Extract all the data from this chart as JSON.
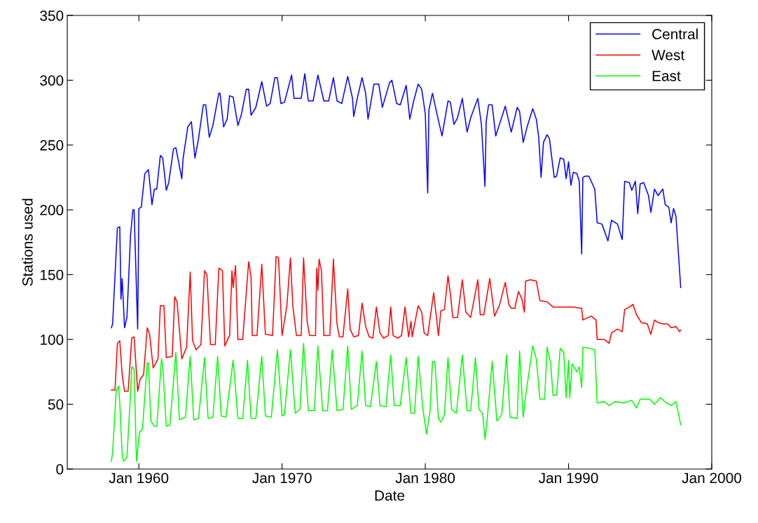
{
  "chart_data": {
    "type": "line",
    "xlabel": "Date",
    "ylabel": "Stations used",
    "xlim": [
      "1955-01",
      "2000-01"
    ],
    "ylim": [
      0,
      350
    ],
    "xticks": [
      {
        "value": "1960-01",
        "label": "Jan 1960"
      },
      {
        "value": "1970-01",
        "label": "Jan 1970"
      },
      {
        "value": "1980-01",
        "label": "Jan 1980"
      },
      {
        "value": "1990-01",
        "label": "Jan 1990"
      },
      {
        "value": "2000-01",
        "label": "Jan 2000"
      }
    ],
    "yticks": [
      0,
      50,
      100,
      150,
      200,
      250,
      300,
      350
    ],
    "legend": "top right",
    "series": [
      {
        "name": "Central",
        "color": "#0000ff",
        "x": [
          "1958-02",
          "1958-03",
          "1958-07",
          "1958-09",
          "1958-10",
          "1958-11",
          "1959-01",
          "1959-03",
          "1959-06",
          "1959-08",
          "1959-09",
          "1959-12",
          "1960-01",
          "1960-03",
          "1960-06",
          "1960-09",
          "1960-12",
          "1961-02",
          "1961-04",
          "1961-07",
          "1961-09",
          "1961-12",
          "1962-02",
          "1962-06",
          "1962-08",
          "1963-01",
          "1963-02",
          "1963-06",
          "1963-09",
          "1963-12",
          "1964-03",
          "1964-07",
          "1964-09",
          "1964-12",
          "1965-03",
          "1965-08",
          "1965-09",
          "1965-12",
          "1966-03",
          "1966-05",
          "1966-08",
          "1966-12",
          "1967-03",
          "1967-07",
          "1967-09",
          "1967-11",
          "1968-03",
          "1968-08",
          "1968-12",
          "1969-03",
          "1969-07",
          "1969-09",
          "1969-12",
          "1970-03",
          "1970-09",
          "1970-11",
          "1971-05",
          "1971-08",
          "1971-11",
          "1972-03",
          "1972-07",
          "1972-12",
          "1973-04",
          "1973-08",
          "1973-11",
          "1974-03",
          "1974-08",
          "1974-12",
          "1975-01",
          "1975-04",
          "1975-08",
          "1975-11",
          "1976-01",
          "1976-06",
          "1976-10",
          "1977-01",
          "1977-07",
          "1977-09",
          "1978-01",
          "1978-04",
          "1978-09",
          "1978-12",
          "1979-03",
          "1979-07",
          "1979-10",
          "1980-01",
          "1980-03",
          "1980-04",
          "1980-07",
          "1980-11",
          "1981-03",
          "1981-08",
          "1981-10",
          "1982-01",
          "1982-04",
          "1982-08",
          "1982-12",
          "1983-03",
          "1983-09",
          "1983-12",
          "1984-03",
          "1984-04",
          "1984-06",
          "1984-09",
          "1984-12",
          "1985-08",
          "1986-01",
          "1986-06",
          "1986-08",
          "1986-11",
          "1987-02",
          "1987-07",
          "1987-10",
          "1987-12",
          "1988-02",
          "1988-04",
          "1988-07",
          "1988-09",
          "1989-01",
          "1989-03",
          "1989-06",
          "1989-09",
          "1989-11",
          "1990-01",
          "1990-03",
          "1990-05",
          "1990-08",
          "1990-10",
          "1990-12",
          "1991-01",
          "1991-03",
          "1991-06",
          "1991-11",
          "1992-01",
          "1992-05",
          "1992-10",
          "1993-01",
          "1993-06",
          "1993-10",
          "1993-12",
          "1994-04",
          "1994-06",
          "1994-09",
          "1994-11",
          "1995-01",
          "1995-04",
          "1995-08",
          "1995-10",
          "1996-01",
          "1996-04",
          "1996-08",
          "1996-10",
          "1997-01",
          "1997-03",
          "1997-05",
          "1997-07",
          "1997-11"
        ],
        "values": [
          109,
          112,
          186,
          187,
          131,
          147,
          109,
          117,
          180,
          200,
          200,
          108,
          201,
          202,
          228,
          231,
          204,
          216,
          216,
          242,
          240,
          215,
          221,
          247,
          248,
          224,
          239,
          264,
          268,
          240,
          255,
          281,
          281,
          256,
          265,
          290,
          290,
          264,
          270,
          288,
          287,
          265,
          274,
          293,
          293,
          273,
          279,
          299,
          280,
          282,
          302,
          302,
          282,
          283,
          304,
          286,
          286,
          305,
          284,
          284,
          304,
          284,
          284,
          302,
          284,
          282,
          303,
          286,
          272,
          286,
          302,
          290,
          270,
          297,
          297,
          279,
          298,
          300,
          282,
          281,
          296,
          270,
          283,
          297,
          293,
          274,
          213,
          277,
          290,
          273,
          257,
          284,
          283,
          266,
          271,
          286,
          260,
          271,
          286,
          266,
          218,
          268,
          281,
          281,
          257,
          280,
          260,
          279,
          276,
          252,
          263,
          278,
          270,
          256,
          225,
          252,
          258,
          255,
          225,
          226,
          240,
          239,
          224,
          237,
          219,
          229,
          228,
          222,
          166,
          225,
          226,
          226,
          216,
          190,
          189,
          176,
          192,
          189,
          177,
          222,
          221,
          215,
          222,
          197,
          220,
          221,
          211,
          198,
          216,
          211,
          216,
          204,
          202,
          190,
          201,
          195,
          140
        ]
      },
      {
        "name": "West",
        "color": "#ff0000",
        "x": [
          "1958-02",
          "1958-05",
          "1958-07",
          "1958-09",
          "1958-11",
          "1959-01",
          "1959-04",
          "1959-07",
          "1959-09",
          "1959-12",
          "1960-02",
          "1960-05",
          "1960-08",
          "1960-10",
          "1961-01",
          "1961-05",
          "1961-07",
          "1961-10",
          "1961-12",
          "1962-05",
          "1962-07",
          "1962-09",
          "1963-01",
          "1963-05",
          "1963-08",
          "1963-10",
          "1964-01",
          "1964-05",
          "1964-08",
          "1964-10",
          "1965-01",
          "1965-05",
          "1965-08",
          "1965-11",
          "1966-01",
          "1966-05",
          "1966-07",
          "1966-08",
          "1966-10",
          "1966-12",
          "1967-04",
          "1967-09",
          "1967-11",
          "1967-12",
          "1968-04",
          "1968-08",
          "1968-11",
          "1969-05",
          "1969-08",
          "1969-10",
          "1970-01",
          "1970-05",
          "1970-08",
          "1970-10",
          "1971-01",
          "1971-05",
          "1971-07",
          "1971-10",
          "1971-12",
          "1972-05",
          "1972-06",
          "1972-07",
          "1972-08",
          "1972-10",
          "1972-12",
          "1973-05",
          "1973-08",
          "1973-11",
          "1974-01",
          "1974-04",
          "1974-08",
          "1974-10",
          "1975-01",
          "1975-05",
          "1975-08",
          "1975-11",
          "1976-02",
          "1976-05",
          "1976-08",
          "1976-11",
          "1977-02",
          "1977-06",
          "1977-08",
          "1977-10",
          "1978-02",
          "1978-05",
          "1978-08",
          "1978-11",
          "1979-01",
          "1979-02",
          "1979-07",
          "1979-10",
          "1979-12",
          "1980-03",
          "1980-08",
          "1980-12",
          "1981-02",
          "1981-05",
          "1981-08",
          "1981-10",
          "1981-12",
          "1982-04",
          "1982-08",
          "1982-11",
          "1983-03",
          "1983-09",
          "1983-11",
          "1984-02",
          "1984-07",
          "1984-11",
          "1985-03",
          "1985-08",
          "1985-11",
          "1986-01",
          "1986-04",
          "1986-07",
          "1986-10",
          "1986-12",
          "1987-01",
          "1987-05",
          "1987-10",
          "1988-01",
          "1988-07",
          "1988-12",
          "1989-08",
          "1990-05",
          "1990-12",
          "1991-01",
          "1991-08",
          "1991-12",
          "1992-01",
          "1992-07",
          "1992-11",
          "1993-01",
          "1993-06",
          "1993-10",
          "1993-12",
          "1994-04",
          "1994-07",
          "1994-10",
          "1995-02",
          "1995-07",
          "1995-10",
          "1996-01",
          "1996-04",
          "1996-08",
          "1996-12",
          "1997-03",
          "1997-07",
          "1997-10",
          "1997-11"
        ],
        "values": [
          61,
          61,
          97,
          99,
          73,
          60,
          60,
          101,
          102,
          60,
          69,
          73,
          109,
          104,
          78,
          85,
          126,
          126,
          86,
          87,
          133,
          129,
          85,
          94,
          152,
          99,
          92,
          96,
          153,
          150,
          96,
          96,
          155,
          153,
          95,
          103,
          153,
          140,
          157,
          100,
          100,
          160,
          148,
          103,
          103,
          158,
          104,
          103,
          164,
          163,
          103,
          126,
          163,
          126,
          103,
          103,
          163,
          114,
          103,
          103,
          155,
          138,
          162,
          153,
          103,
          103,
          162,
          112,
          102,
          102,
          139,
          108,
          102,
          103,
          128,
          110,
          102,
          101,
          125,
          105,
          101,
          103,
          125,
          103,
          101,
          103,
          125,
          102,
          114,
          102,
          126,
          121,
          105,
          103,
          136,
          103,
          122,
          123,
          149,
          135,
          117,
          117,
          146,
          121,
          117,
          146,
          119,
          119,
          147,
          118,
          126,
          144,
          127,
          124,
          124,
          137,
          131,
          121,
          145,
          146,
          145,
          130,
          129,
          125,
          125,
          125,
          124,
          115,
          118,
          115,
          100,
          100,
          97,
          105,
          108,
          106,
          123,
          125,
          127,
          119,
          113,
          112,
          104,
          115,
          113,
          112,
          112,
          109,
          110,
          106,
          107
        ]
      },
      {
        "name": "East",
        "color": "#00ff00",
        "x": [
          "1958-02",
          "1958-03",
          "1958-06",
          "1958-08",
          "1958-09",
          "1958-11",
          "1958-12",
          "1959-03",
          "1959-06",
          "1959-07",
          "1959-09",
          "1959-11",
          "1960-01",
          "1960-02",
          "1960-04",
          "1960-08",
          "1960-09",
          "1960-11",
          "1961-02",
          "1961-04",
          "1961-08",
          "1961-09",
          "1961-12",
          "1962-03",
          "1962-08",
          "1962-11",
          "1963-04",
          "1963-08",
          "1963-11",
          "1964-03",
          "1964-08",
          "1964-11",
          "1965-03",
          "1965-07",
          "1965-10",
          "1966-02",
          "1966-08",
          "1966-12",
          "1967-04",
          "1967-08",
          "1967-11",
          "1968-03",
          "1968-08",
          "1968-11",
          "1969-04",
          "1969-09",
          "1970-01",
          "1970-03",
          "1970-08",
          "1970-12",
          "1971-04",
          "1971-07",
          "1971-11",
          "1972-04",
          "1972-07",
          "1972-11",
          "1973-03",
          "1973-07",
          "1973-11",
          "1974-04",
          "1974-08",
          "1974-11",
          "1975-04",
          "1975-08",
          "1975-11",
          "1976-03",
          "1976-08",
          "1976-11",
          "1977-04",
          "1977-08",
          "1977-11",
          "1978-04",
          "1978-09",
          "1979-01",
          "1979-04",
          "1979-07",
          "1979-11",
          "1980-02",
          "1980-05",
          "1980-07",
          "1980-09",
          "1980-12",
          "1981-02",
          "1981-05",
          "1981-08",
          "1981-11",
          "1982-03",
          "1982-08",
          "1982-12",
          "1983-03",
          "1983-07",
          "1983-10",
          "1984-01",
          "1984-03",
          "1984-05",
          "1984-09",
          "1985-01",
          "1985-05",
          "1985-09",
          "1985-12",
          "1986-06",
          "1986-08",
          "1986-11",
          "1987-01",
          "1987-07",
          "1987-10",
          "1988-01",
          "1988-05",
          "1988-07",
          "1988-10",
          "1988-12",
          "1989-03",
          "1989-06",
          "1989-09",
          "1989-11",
          "1990-01",
          "1990-02",
          "1990-04",
          "1990-08",
          "1990-10",
          "1990-12",
          "1991-01",
          "1991-07",
          "1991-11",
          "1992-01",
          "1992-07",
          "1992-11",
          "1993-04",
          "1993-11",
          "1994-06",
          "1994-10",
          "1995-01",
          "1995-09",
          "1996-01",
          "1996-06",
          "1996-11",
          "1997-03",
          "1997-07",
          "1997-11"
        ],
        "values": [
          6,
          13,
          60,
          64,
          51,
          12,
          6,
          9,
          58,
          79,
          77,
          6,
          24,
          29,
          31,
          82,
          82,
          37,
          33,
          33,
          85,
          79,
          33,
          34,
          90,
          38,
          40,
          87,
          38,
          39,
          86,
          39,
          40,
          87,
          41,
          40,
          84,
          39,
          39,
          84,
          39,
          39,
          87,
          41,
          40,
          92,
          41,
          42,
          92,
          43,
          46,
          97,
          45,
          45,
          95,
          45,
          45,
          92,
          45,
          46,
          95,
          46,
          49,
          91,
          49,
          48,
          83,
          49,
          48,
          88,
          49,
          49,
          86,
          43,
          43,
          87,
          46,
          27,
          45,
          83,
          83,
          39,
          36,
          42,
          86,
          46,
          43,
          88,
          45,
          45,
          86,
          46,
          43,
          23,
          40,
          83,
          37,
          42,
          88,
          40,
          39,
          91,
          40,
          56,
          95,
          85,
          54,
          54,
          94,
          82,
          57,
          57,
          93,
          90,
          55,
          84,
          55,
          81,
          75,
          79,
          63,
          94,
          93,
          92,
          51,
          52,
          49,
          52,
          51,
          53,
          47,
          54,
          54,
          50,
          55,
          51,
          49,
          52,
          34
        ]
      }
    ]
  }
}
